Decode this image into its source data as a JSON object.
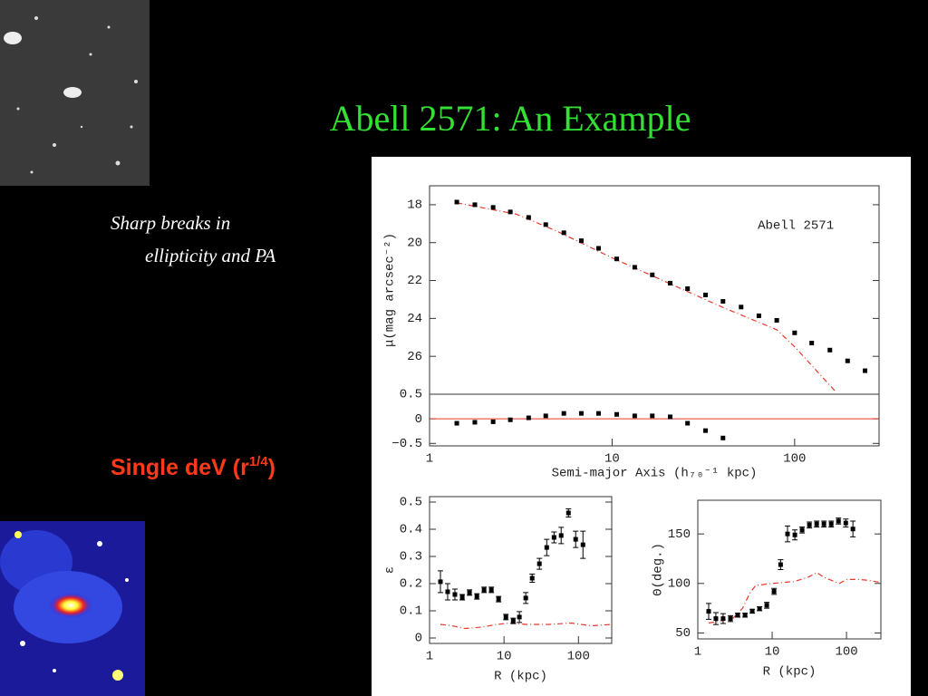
{
  "slide": {
    "title": "Abell 2571: An Example",
    "bullet": [
      "Sharp breaks in",
      "ellipticity and PA"
    ],
    "callout": {
      "text": "Single deV (r",
      "superscript": "1/4",
      "end": ")"
    }
  },
  "chart_data": [
    {
      "type": "scatter",
      "annotation": "Abell 2571",
      "ylabel": "μ(mag arcsec⁻²)",
      "log_x": true,
      "xlim": [
        1,
        290
      ],
      "ylim": [
        28,
        17
      ],
      "yticks": [
        18,
        20,
        22,
        24,
        26
      ],
      "points": {
        "x": [
          1.41,
          1.77,
          2.23,
          2.77,
          3.49,
          4.33,
          5.44,
          6.78,
          8.43,
          10.6,
          13.3,
          16.6,
          20.8,
          25.9,
          32.5,
          40.5,
          50.9,
          63.7,
          79.8,
          100,
          124,
          156,
          195,
          243
        ],
        "values": [
          17.86,
          18.0,
          18.14,
          18.38,
          18.67,
          19.05,
          19.48,
          19.9,
          20.3,
          20.86,
          21.3,
          21.7,
          22.14,
          22.43,
          22.76,
          23.1,
          23.4,
          23.86,
          24.1,
          24.76,
          25.3,
          25.67,
          26.24,
          26.76
        ],
        "color": "#000000"
      },
      "fit": {
        "x": [
          1.41,
          3,
          5,
          10,
          20,
          40,
          60,
          80,
          100,
          169
        ],
        "values": [
          17.9,
          18.5,
          19.4,
          20.8,
          22.1,
          23.4,
          24.1,
          24.6,
          25.5,
          27.9
        ],
        "color": "#e8372a"
      }
    },
    {
      "type": "scatter",
      "xlabel": "Semi-major Axis (h₇₀⁻¹ kpc)",
      "log_x": true,
      "xlim": [
        1,
        290
      ],
      "ylim": [
        -0.55,
        0.5
      ],
      "xticks": [
        1,
        10,
        100
      ],
      "yticks": [
        0.5,
        0,
        {
          "value": -0.5,
          "label": "−0.5"
        }
      ],
      "reference_line": {
        "value": 0,
        "color": "#e8372a"
      },
      "points": {
        "x": [
          1.41,
          1.77,
          2.23,
          2.77,
          3.49,
          4.33,
          5.44,
          6.78,
          8.43,
          10.6,
          13.3,
          16.6,
          20.8,
          25.9,
          32.5,
          40.5
        ],
        "values": [
          -0.09,
          -0.07,
          -0.06,
          -0.02,
          0.02,
          0.06,
          0.11,
          0.11,
          0.11,
          0.09,
          0.06,
          0.06,
          0.04,
          -0.09,
          -0.24,
          -0.39
        ],
        "color": "#000000"
      }
    },
    {
      "type": "scatter",
      "xlabel": "R (kpc)",
      "ylabel": "ε",
      "log_x": true,
      "xlim": [
        1,
        280
      ],
      "ylim": [
        -0.02,
        0.52
      ],
      "xticks": [
        1,
        10,
        100
      ],
      "yticks": [
        0,
        0.1,
        0.2,
        0.3,
        0.4,
        0.5
      ],
      "points": {
        "x": [
          1.4,
          1.75,
          2.19,
          2.75,
          3.44,
          4.32,
          5.4,
          6.76,
          8.46,
          10.6,
          13.3,
          16.1,
          19.6,
          23.9,
          29.9,
          37.5,
          47,
          58.6,
          73.5,
          91.8,
          115
        ],
        "values": [
          0.207,
          0.17,
          0.16,
          0.15,
          0.167,
          0.153,
          0.177,
          0.177,
          0.143,
          0.077,
          0.063,
          0.077,
          0.147,
          0.22,
          0.273,
          0.333,
          0.37,
          0.377,
          0.46,
          0.363,
          0.343
        ],
        "errors": [
          0.04,
          0.03,
          0.02,
          0.01,
          0.01,
          0.01,
          0.01,
          0.01,
          0.01,
          0.01,
          0.01,
          0.02,
          0.02,
          0.015,
          0.02,
          0.03,
          0.02,
          0.03,
          0.015,
          0.03,
          0.05
        ],
        "color": "#000000"
      },
      "fit": {
        "x": [
          1.4,
          2,
          3,
          5,
          8,
          12,
          20,
          40,
          80,
          150,
          280
        ],
        "values": [
          0.05,
          0.045,
          0.035,
          0.04,
          0.05,
          0.055,
          0.05,
          0.05,
          0.055,
          0.045,
          0.05
        ],
        "color": "#e8372a"
      }
    },
    {
      "type": "scatter",
      "xlabel": "R (kpc)",
      "ylabel": "Θ(deg.)",
      "log_x": true,
      "xlim": [
        1,
        290
      ],
      "ylim": [
        44,
        184
      ],
      "xticks": [
        1,
        10,
        100
      ],
      "yticks": [
        50,
        100,
        150
      ],
      "points": {
        "x": [
          1.4,
          1.75,
          2.19,
          2.75,
          3.44,
          4.32,
          5.4,
          6.76,
          8.46,
          10.6,
          13,
          16.1,
          20.2,
          25.3,
          31.7,
          39.7,
          49.7,
          62.3,
          78,
          97.8,
          122
        ],
        "values": [
          71.8,
          64.5,
          64.5,
          64.5,
          68,
          68,
          72,
          74.5,
          78,
          92,
          119,
          150,
          149,
          154,
          159,
          160,
          160,
          160,
          163,
          161,
          155
        ],
        "errors": [
          8,
          6,
          5,
          3,
          2,
          2,
          2,
          2,
          3,
          3,
          5,
          8,
          5,
          3,
          3,
          3,
          3,
          3,
          3,
          4,
          8
        ],
        "color": "#000000"
      },
      "fit": {
        "x": [
          1.4,
          2,
          3,
          4,
          5,
          6,
          10,
          20,
          30,
          40,
          50,
          80,
          100,
          150,
          200,
          290
        ],
        "values": [
          60,
          62,
          65,
          75,
          90,
          98,
          100,
          102,
          106,
          111,
          106,
          100,
          104,
          104,
          103,
          101
        ],
        "color": "#e8372a"
      }
    }
  ]
}
